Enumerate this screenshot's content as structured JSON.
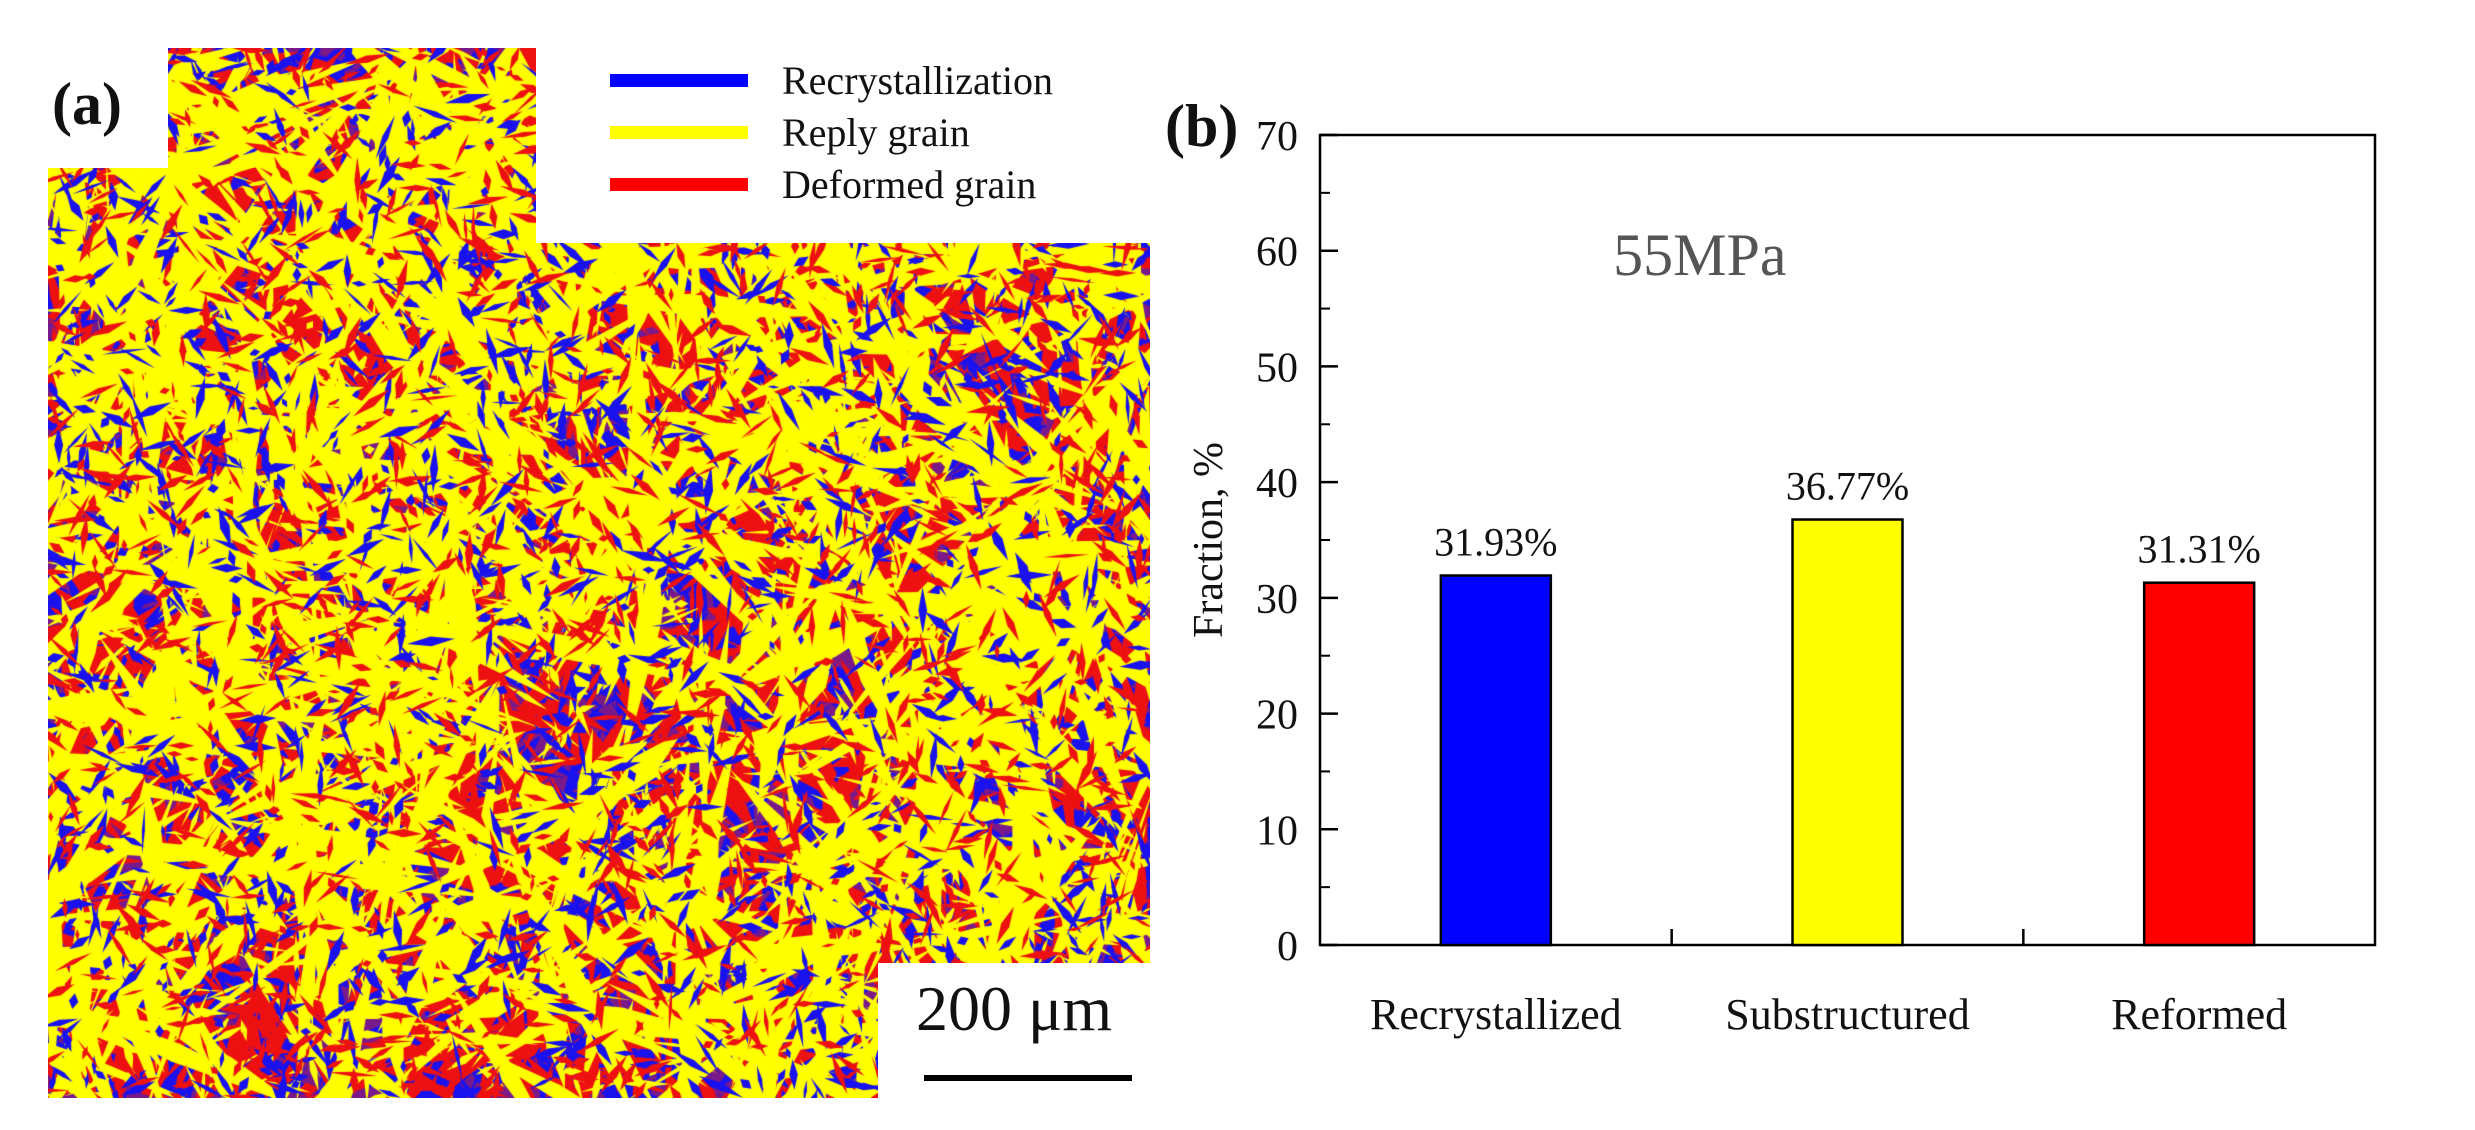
{
  "panel_a": {
    "label": "(a)",
    "legend": [
      {
        "label": "Recrystallization",
        "color": "#0000ff"
      },
      {
        "label": "Reply grain",
        "color": "#ffff00"
      },
      {
        "label": "Deformed grain",
        "color": "#ff0000"
      }
    ],
    "scale_bar": "200 μm",
    "colors": {
      "blue": "#1a12ee",
      "yellow": "#ffff00",
      "red": "#ee1111"
    }
  },
  "panel_b": {
    "label": "(b)"
  },
  "chart_data": {
    "type": "bar",
    "title": "55MPa",
    "categories": [
      "Recrystallized",
      "Substructured",
      "Reformed"
    ],
    "values": [
      31.93,
      36.77,
      31.31
    ],
    "data_labels": [
      "31.93%",
      "36.77%",
      "31.31%"
    ],
    "bar_colors": [
      "#0000ff",
      "#ffff00",
      "#ff0000"
    ],
    "xlabel": "",
    "ylabel": "Fraction, %",
    "ylim": [
      0,
      70
    ],
    "yticks": [
      0,
      10,
      20,
      30,
      40,
      50,
      60,
      70
    ],
    "grid": false,
    "legend": "none"
  }
}
